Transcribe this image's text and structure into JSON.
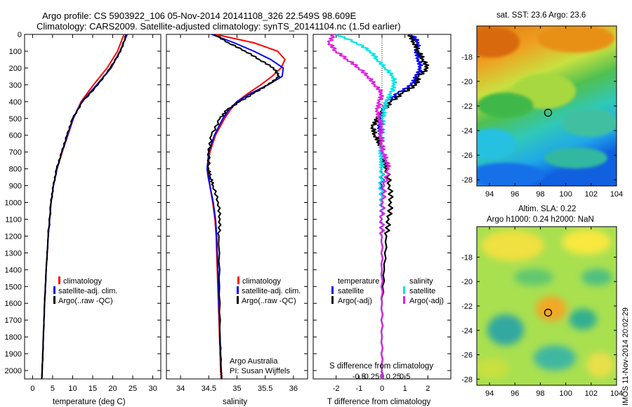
{
  "page": {
    "title_line1": "Argo profile: CS 5903922_106 05-Nov-2014 20141108_326 22.549S 98.609E",
    "title_line2": "Climatology: CARS2009. Satellite-adjusted climatology: synTS_20141104.nc (1.5d earlier)",
    "side_stamp": "IMOS 11-Nov-2014 20:02:29"
  },
  "colors": {
    "red": "#ff0000",
    "blue": "#0000ff",
    "black": "#000000",
    "cyan": "#00e6e6",
    "magenta": "#e020e0"
  },
  "legends": {
    "temperature_panel": [
      "climatology",
      "satellite-adj. clim.",
      "Argo(..raw -QC)"
    ],
    "salinity_panel": [
      "climatology",
      "satellite-adj. clim.",
      "Argo(..raw -QC)"
    ],
    "diff_temperature_header": "temperature",
    "diff_salinity_header": "salinity",
    "diff_temperature_items": [
      "satellite",
      "Argo(-adj)"
    ],
    "diff_salinity_items": [
      "satellite",
      "Argo(-adj)"
    ]
  },
  "annotations": {
    "argo_australia": "Argo Australia",
    "pi": "PI: Susan Wijffels"
  },
  "chart_data": [
    {
      "type": "line",
      "name": "temperature",
      "xlabel": "temperature (deg C)",
      "xlim": [
        -2,
        32
      ],
      "ylim": [
        2050,
        0
      ],
      "xticks": [
        0,
        5,
        10,
        15,
        20,
        25,
        30
      ],
      "yticks": [
        0,
        100,
        200,
        300,
        400,
        500,
        600,
        700,
        800,
        900,
        1000,
        1100,
        1200,
        1300,
        1400,
        1500,
        1600,
        1700,
        1800,
        1900,
        2000
      ],
      "depth": [
        0,
        100,
        200,
        300,
        400,
        500,
        600,
        700,
        800,
        900,
        1000,
        1200,
        1400,
        1600,
        1800,
        2000,
        2050
      ],
      "series": [
        {
          "name": "climatology",
          "color": "red",
          "values": [
            22.8,
            21.2,
            18.6,
            15.2,
            12.1,
            10.2,
            8.8,
            7.4,
            6.1,
            5.2,
            4.6,
            3.9,
            3.4,
            3.0,
            2.7,
            2.4,
            2.3
          ]
        },
        {
          "name": "satellite-adj. clim.",
          "color": "blue",
          "values": [
            23.6,
            21.8,
            19.6,
            16.0,
            12.3,
            10.1,
            8.7,
            7.3,
            6.1,
            5.2,
            4.6,
            3.9,
            3.4,
            3.0,
            2.7,
            2.4,
            2.3
          ]
        },
        {
          "name": "Argo(..raw -QC)",
          "color": "black",
          "values": [
            23.4,
            22.0,
            19.4,
            16.3,
            12.5,
            10.0,
            8.6,
            7.3,
            6.0,
            5.2,
            4.6,
            3.9,
            3.4,
            3.0,
            2.7,
            2.4,
            2.3
          ]
        }
      ]
    },
    {
      "type": "line",
      "name": "salinity",
      "xlabel": "salinity",
      "xlim": [
        33.75,
        36.25
      ],
      "ylim": [
        2050,
        0
      ],
      "xticks": [
        34,
        34.5,
        35,
        35.5,
        36
      ],
      "depth": [
        0,
        50,
        100,
        150,
        200,
        250,
        300,
        350,
        400,
        450,
        500,
        600,
        700,
        800,
        850,
        900,
        1000,
        1100,
        1200,
        1500,
        1800,
        2000,
        2050
      ],
      "series": [
        {
          "name": "climatology",
          "color": "red",
          "values": [
            34.62,
            35.3,
            35.72,
            35.85,
            35.78,
            35.62,
            35.42,
            35.2,
            35.0,
            34.88,
            34.78,
            34.62,
            34.52,
            34.48,
            34.5,
            34.52,
            34.57,
            34.61,
            34.63,
            34.66,
            34.69,
            34.71,
            34.72
          ]
        },
        {
          "name": "satellite-adj. clim.",
          "color": "blue",
          "values": [
            34.55,
            34.95,
            35.3,
            35.6,
            35.82,
            35.8,
            35.55,
            35.25,
            35.0,
            34.85,
            34.75,
            34.6,
            34.5,
            34.47,
            34.49,
            34.52,
            34.58,
            34.62,
            34.64,
            34.67,
            34.7,
            34.72,
            34.73
          ]
        },
        {
          "name": "Argo(..raw -QC)",
          "color": "black",
          "values": [
            34.6,
            34.85,
            35.15,
            35.4,
            35.65,
            35.75,
            35.55,
            35.3,
            35.05,
            34.82,
            34.7,
            34.55,
            34.5,
            34.5,
            34.53,
            34.58,
            34.67,
            34.7,
            34.68,
            34.69,
            34.7,
            34.72,
            34.73
          ]
        }
      ]
    },
    {
      "type": "line",
      "name": "difference_from_climatology",
      "xlabel": "T difference from climatology",
      "xlabel_top": "S difference from climatology",
      "xlim": [
        -3,
        3
      ],
      "ylim": [
        2050,
        0
      ],
      "xticks": [
        -2,
        -1,
        0,
        1,
        2
      ],
      "xticks_s": [
        "-0.5",
        "-0.25",
        "0",
        "0.25",
        "0.5"
      ],
      "depth": [
        0,
        50,
        100,
        150,
        200,
        250,
        300,
        350,
        400,
        450,
        500,
        550,
        600,
        650,
        700,
        750,
        800,
        900,
        1000,
        1100,
        1200,
        1400,
        1600,
        1800,
        2000,
        2050
      ],
      "series": [
        {
          "name": "T satellite",
          "color": "blue",
          "values": [
            1.3,
            1.6,
            1.5,
            1.6,
            1.7,
            1.5,
            1.3,
            0.7,
            0.2,
            0.05,
            -0.05,
            -0.1,
            -0.05,
            0,
            0,
            0,
            0,
            0,
            0,
            0,
            0,
            0,
            0,
            0,
            0,
            0
          ]
        },
        {
          "name": "T Argo(-adj)",
          "color": "black",
          "values": [
            1.2,
            1.4,
            1.6,
            1.8,
            2.0,
            1.6,
            1.5,
            0.9,
            0.4,
            0.1,
            -0.2,
            -0.4,
            -0.3,
            -0.1,
            0.05,
            0.1,
            0.2,
            0.35,
            0.4,
            0.3,
            0.2,
            0.1,
            0,
            0,
            0,
            0
          ]
        },
        {
          "name": "S satellite",
          "color": "cyan",
          "values": [
            -2.0,
            -1.1,
            -0.5,
            -0.2,
            0.15,
            0.5,
            0.55,
            0.4,
            0.2,
            0.1,
            0.05,
            0.02,
            0,
            0,
            -0.05,
            0,
            0,
            -0.05,
            0,
            0,
            0,
            0,
            0,
            0,
            0,
            0
          ]
        },
        {
          "name": "S Argo(-adj)",
          "color": "magenta",
          "values": [
            -2.1,
            -2.3,
            -2.0,
            -1.5,
            -1.0,
            -0.6,
            -0.3,
            0,
            -0.1,
            -0.2,
            -0.1,
            0,
            -0.05,
            0,
            0.05,
            0.2,
            0.3,
            0.1,
            0.05,
            0,
            0,
            0,
            0,
            0,
            0,
            0
          ]
        }
      ]
    },
    {
      "type": "heatmap",
      "name": "sst_map",
      "title": "sat. SST: 23.6 Argo: 23.6",
      "xlim": [
        93,
        104
      ],
      "ylim": [
        -28.5,
        -15.5
      ],
      "xticks": [
        94,
        96,
        98,
        100,
        102,
        104
      ],
      "yticks": [
        -18,
        -20,
        -22,
        -24,
        -26,
        -28
      ],
      "marker": {
        "lon": 98.609,
        "lat": -22.549
      }
    },
    {
      "type": "heatmap",
      "name": "sla_map",
      "title_line1": "Altim. SLA: 0.22",
      "title_line2": "Argo h1000: 0.24 h2000: NaN",
      "xlim": [
        93,
        104
      ],
      "ylim": [
        -28.5,
        -15.5
      ],
      "xticks": [
        94,
        96,
        98,
        100,
        102,
        104
      ],
      "yticks": [
        -18,
        -20,
        -22,
        -24,
        -26,
        -28
      ],
      "marker": {
        "lon": 98.609,
        "lat": -22.549
      }
    }
  ]
}
